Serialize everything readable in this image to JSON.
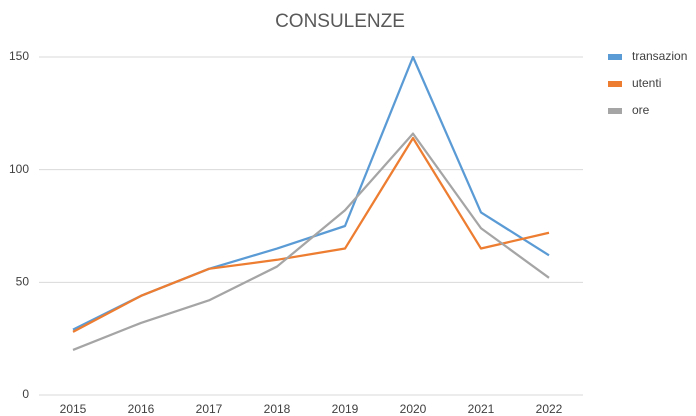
{
  "chart_data": {
    "type": "line",
    "title": "CONSULENZE",
    "categories": [
      "2015",
      "2016",
      "2017",
      "2018",
      "2019",
      "2020",
      "2021",
      "2022"
    ],
    "series": [
      {
        "name": "transazion",
        "color": "#5b9bd5",
        "values": [
          29,
          44,
          56,
          65,
          75,
          150,
          81,
          62
        ]
      },
      {
        "name": "utenti",
        "color": "#ed7d31",
        "values": [
          28,
          44,
          56,
          60,
          65,
          114,
          65,
          72
        ]
      },
      {
        "name": "ore",
        "color": "#a5a5a5",
        "values": [
          20,
          32,
          42,
          57,
          82,
          116,
          74,
          52
        ]
      }
    ],
    "ylim": [
      0,
      150
    ],
    "yticks": [
      0,
      50,
      100,
      150
    ],
    "grid": true,
    "legend": "right"
  }
}
